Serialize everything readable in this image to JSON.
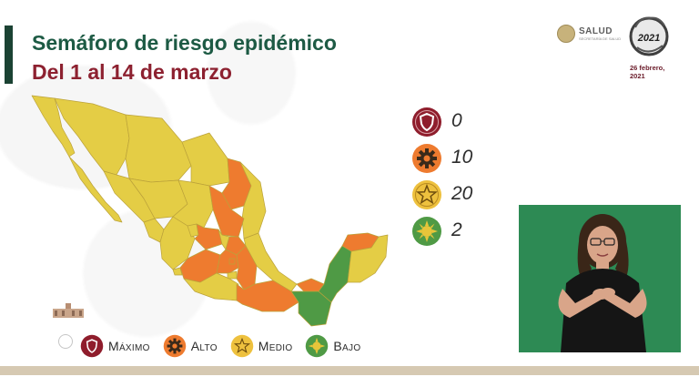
{
  "header": {
    "title": "Semáforo de riesgo epidémico",
    "subtitle": "Del 1 al 14 de marzo"
  },
  "branding": {
    "salud_label": "SALUD",
    "salud_sublabel": "SECRETARÍA DE SALUD",
    "year_logo": "2021",
    "date_line1": "26 febrero,",
    "date_line2": "2021"
  },
  "counts": [
    {
      "level": "Máximo",
      "value": "0",
      "color": "#8f1d2c",
      "icon": "shield-icon"
    },
    {
      "level": "Alto",
      "value": "10",
      "color": "#ee7b2f",
      "icon": "gear-icon"
    },
    {
      "level": "Medio",
      "value": "20",
      "color": "#eec13e",
      "icon": "star-icon"
    },
    {
      "level": "Bajo",
      "value": "2",
      "color": "#4f9a45",
      "icon": "sun-icon"
    }
  ],
  "legend": {
    "maximo": "Máximo",
    "alto": "Alto",
    "medio": "Medio",
    "bajo": "Bajo"
  },
  "colors": {
    "yellow": "#e4cd45",
    "orange": "#ee7b2f",
    "green": "#4f9a45",
    "red": "#8f1d2c",
    "title_green": "#1d5a44",
    "subtitle_red": "#8d2130"
  }
}
